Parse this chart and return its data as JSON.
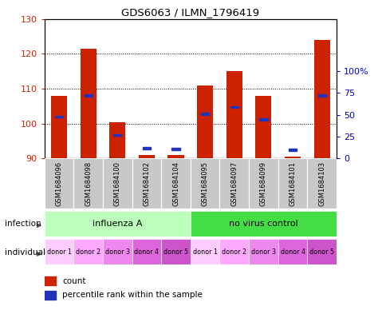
{
  "title": "GDS6063 / ILMN_1796419",
  "samples": [
    "GSM1684096",
    "GSM1684098",
    "GSM1684100",
    "GSM1684102",
    "GSM1684104",
    "GSM1684095",
    "GSM1684097",
    "GSM1684099",
    "GSM1684101",
    "GSM1684103"
  ],
  "bar_heights": [
    108,
    121.5,
    100.5,
    91,
    91,
    111,
    115,
    108,
    90.5,
    124
  ],
  "blue_pct": [
    48,
    72,
    27,
    12,
    11,
    51,
    59,
    45,
    10,
    72
  ],
  "y_min": 90,
  "y_max": 130,
  "y_left_ticks": [
    90,
    100,
    110,
    120,
    130
  ],
  "y2_pct_ticks": [
    0,
    25,
    50,
    75,
    100
  ],
  "bar_color": "#cc2200",
  "blue_color": "#2233bb",
  "infection_groups": [
    {
      "label": "influenza A",
      "start": 0,
      "end": 5,
      "color": "#bbffbb"
    },
    {
      "label": "no virus control",
      "start": 5,
      "end": 10,
      "color": "#44dd44"
    }
  ],
  "individual_labels": [
    "donor 1",
    "donor 2",
    "donor 3",
    "donor 4",
    "donor 5",
    "donor 1",
    "donor 2",
    "donor 3",
    "donor 4",
    "donor 5"
  ],
  "ind_colors": [
    "#ffccff",
    "#ffaaff",
    "#ee88ee",
    "#dd66dd",
    "#cc55cc",
    "#ffccff",
    "#ffaaff",
    "#ee88ee",
    "#dd66dd",
    "#cc55cc"
  ],
  "infection_row_label": "infection",
  "individual_row_label": "individual",
  "legend_count_color": "#cc2200",
  "legend_pct_color": "#2233bb",
  "ylabel_left_color": "#cc2200",
  "ylabel_right_color": "#0000cc"
}
